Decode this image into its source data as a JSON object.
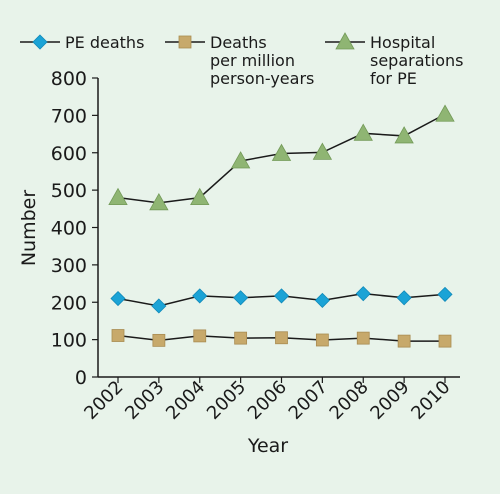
{
  "chart_data": {
    "type": "line",
    "xlabel": "Year",
    "ylabel": "Number",
    "ylim": [
      0,
      800
    ],
    "yticks": [
      0,
      100,
      200,
      300,
      400,
      500,
      600,
      700,
      800
    ],
    "categories": [
      "2002",
      "2003",
      "2004",
      "2005",
      "2006",
      "2007",
      "2008",
      "2009",
      "2010"
    ],
    "grid": false,
    "legend_position": "top",
    "series": [
      {
        "name": "PE deaths",
        "legend_lines": [
          "PE deaths"
        ],
        "marker": "diamond",
        "color": "#1ba3d6",
        "values": [
          210,
          190,
          217,
          212,
          217,
          205,
          223,
          212,
          221
        ]
      },
      {
        "name": "Deaths per million person-years",
        "legend_lines": [
          "Deaths",
          "per million",
          "person-years"
        ],
        "marker": "square",
        "color": "#c7a96b",
        "values": [
          111,
          98,
          110,
          104,
          105,
          99,
          104,
          96,
          96
        ]
      },
      {
        "name": "Hospital separations for PE",
        "legend_lines": [
          "Hospital",
          "separations",
          "for PE"
        ],
        "marker": "triangle",
        "color": "#8fb573",
        "values": [
          480,
          466,
          480,
          578,
          598,
          601,
          652,
          645,
          703
        ]
      }
    ]
  }
}
